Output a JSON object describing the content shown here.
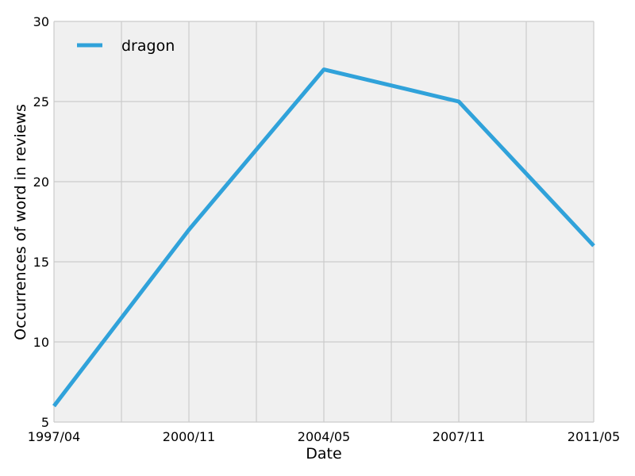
{
  "chart_data": {
    "type": "line",
    "title": "",
    "xlabel": "Date",
    "ylabel": "Occurrences of word in reviews",
    "x": [
      "1997/04",
      "2000/11",
      "2004/05",
      "2007/11",
      "2011/05"
    ],
    "series": [
      {
        "name": "dragon",
        "color": "#30a2da",
        "values": [
          6,
          17,
          27,
          25,
          16
        ]
      }
    ],
    "ylim": [
      5,
      30
    ],
    "yticks": [
      5,
      10,
      15,
      20,
      25,
      30
    ],
    "xtick_labels": [
      "1997/04",
      "2000/11",
      "2004/05",
      "2007/11",
      "2011/05"
    ],
    "grid": true,
    "legend_position": "top-left",
    "style": {
      "plot_background": "#f0f0f0",
      "grid_color": "#cbcbcb",
      "page_background": "#ffffff"
    }
  }
}
